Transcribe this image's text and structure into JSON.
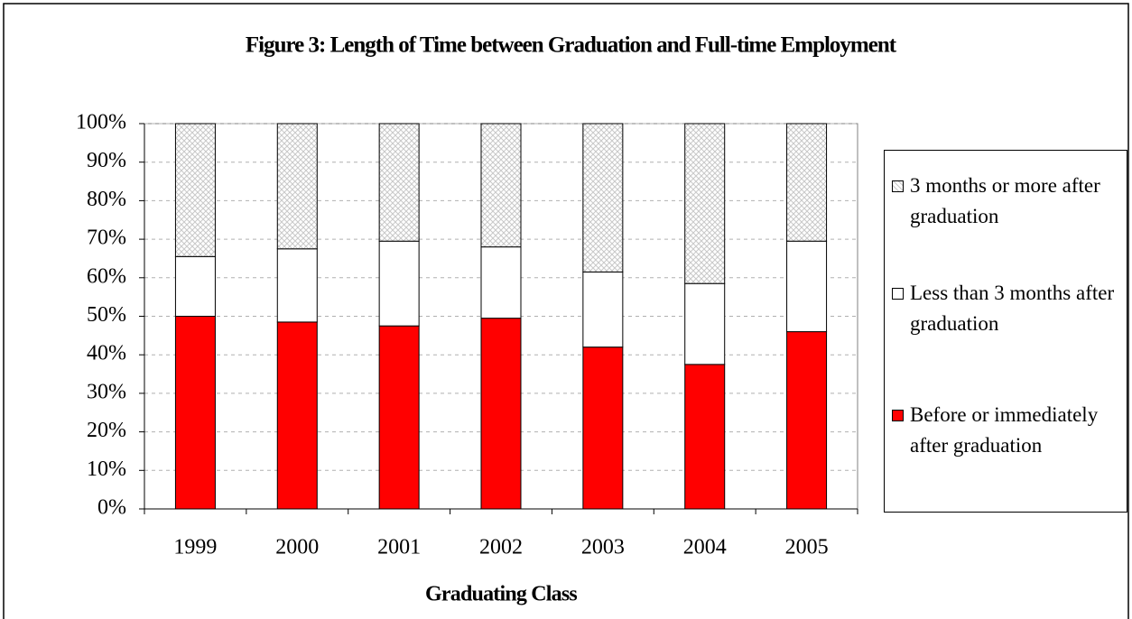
{
  "chart_data": {
    "type": "stacked_bar",
    "title": "Figure 3:  Length of Time between Graduation and Full-time Employment",
    "x_label": "Graduating Class",
    "categories": [
      "1999",
      "2000",
      "2001",
      "2002",
      "2003",
      "2004",
      "2005"
    ],
    "series": [
      {
        "name": "Before or immediately after graduation",
        "color": "#ff0000",
        "values": [
          50,
          48.5,
          47.5,
          49.5,
          42,
          37.5,
          46
        ]
      },
      {
        "name": "Less than 3 months after graduation",
        "color": "#ffffff",
        "values": [
          15.5,
          19,
          22,
          18.5,
          19.5,
          21,
          23.5
        ]
      },
      {
        "name": "3 months or more after graduation",
        "color": "#c8c8c8",
        "values": [
          34.5,
          32.5,
          30.5,
          32,
          38.5,
          41.5,
          30.5
        ]
      }
    ],
    "ylim": [
      0,
      100
    ],
    "yticks": [
      {
        "value": 0,
        "label": "0%"
      },
      {
        "value": 10,
        "label": "10%"
      },
      {
        "value": 20,
        "label": "20%"
      },
      {
        "value": 30,
        "label": "30%"
      },
      {
        "value": 40,
        "label": "40%"
      },
      {
        "value": 50,
        "label": "50%"
      },
      {
        "value": 60,
        "label": "60%"
      },
      {
        "value": 70,
        "label": "70%"
      },
      {
        "value": 80,
        "label": "80%"
      },
      {
        "value": 90,
        "label": "90%"
      },
      {
        "value": 100,
        "label": "100%"
      }
    ],
    "grid": true,
    "legend": "right"
  }
}
